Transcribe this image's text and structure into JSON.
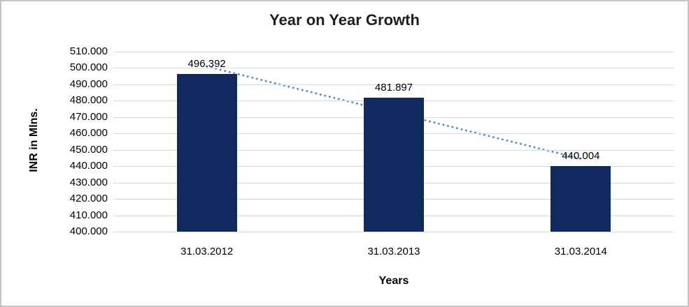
{
  "window": {
    "background_color": "#ffffff",
    "border_color": "#c3c3c3"
  },
  "chart_data": {
    "type": "bar",
    "title": "Year on Year Growth",
    "xlabel": "Years",
    "ylabel": "INR in Mlns.",
    "categories": [
      "31.03.2012",
      "31.03.2013",
      "31.03.2014"
    ],
    "values": [
      496.392,
      481.897,
      440.004
    ],
    "data_labels": [
      "496.392",
      "481.897",
      "440.004"
    ],
    "ylim": [
      400,
      510
    ],
    "ytick_step": 10,
    "ytick_labels": [
      "510.000",
      "500.000",
      "490.000",
      "480.000",
      "470.000",
      "460.000",
      "450.000",
      "440.000",
      "430.000",
      "420.000",
      "410.000",
      "400.000"
    ],
    "grid": true,
    "legend_position": "none",
    "bar_color": "#10295f",
    "gridline_color": "#d9d9d9",
    "label_color": "#000000",
    "trendline": {
      "kind": "linear",
      "style": "dotted",
      "color": "#5b8fd0",
      "start_value": 500.958,
      "end_value": 444.57
    }
  }
}
